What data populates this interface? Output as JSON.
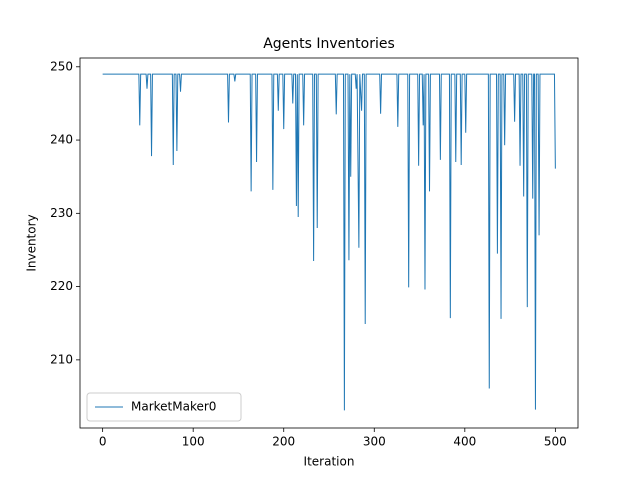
{
  "chart_data": {
    "type": "line",
    "title": "Agents Inventories",
    "xlabel": "Iteration",
    "ylabel": "Inventory",
    "x": [
      0,
      40,
      41,
      42,
      48,
      49,
      50,
      53,
      54,
      55,
      77,
      78,
      79,
      81,
      82,
      83,
      85,
      86,
      87,
      138,
      139,
      140,
      145,
      146,
      147,
      163,
      164,
      165,
      169,
      170,
      171,
      187,
      188,
      189,
      193,
      194,
      195,
      199,
      200,
      201,
      209,
      210,
      211,
      213,
      214,
      215,
      216,
      217,
      221,
      222,
      223,
      232,
      233,
      234,
      236,
      237,
      238,
      257,
      258,
      259,
      266,
      267,
      268,
      271,
      272,
      273,
      274,
      275,
      279,
      280,
      281,
      283,
      284,
      286,
      287,
      289,
      290,
      291,
      306,
      307,
      308,
      325,
      326,
      327,
      337,
      338,
      339,
      348,
      349,
      350,
      353,
      354,
      355,
      356,
      357,
      360,
      361,
      362,
      372,
      373,
      374,
      383,
      384,
      385,
      389,
      390,
      391,
      395,
      396,
      397,
      400,
      401,
      402,
      426,
      427,
      428,
      435,
      436,
      437,
      439,
      440,
      441,
      443,
      444,
      445,
      454,
      455,
      456,
      460,
      461,
      462,
      464,
      465,
      466,
      468,
      469,
      470,
      474,
      475,
      476,
      477,
      478,
      479,
      481,
      482,
      483,
      499,
      500
    ],
    "series": [
      {
        "name": "MarketMaker0",
        "color": "#1f77b4",
        "values": [
          249,
          249,
          242,
          249,
          249,
          247,
          249,
          249,
          237.8,
          249,
          249,
          236.6,
          249,
          249,
          238.5,
          249,
          249,
          246.6,
          249,
          249,
          242.4,
          249,
          249,
          248,
          249,
          249,
          233,
          249,
          249,
          237,
          249,
          249,
          233.2,
          249,
          249,
          244,
          249,
          249,
          241.5,
          249,
          249,
          245,
          249,
          249,
          231,
          249,
          229.5,
          249,
          249,
          242,
          249,
          249,
          223.5,
          249,
          249,
          228,
          249,
          249,
          243.5,
          249,
          249,
          203.1,
          249,
          249,
          223.6,
          249,
          235,
          249,
          249,
          247,
          249,
          225.3,
          249,
          244,
          249,
          249,
          214.9,
          249,
          249,
          243.6,
          249,
          249,
          241.8,
          249,
          249,
          219.9,
          249,
          249,
          236.5,
          249,
          249,
          242,
          249,
          219.6,
          249,
          249,
          233,
          249,
          249,
          237.3,
          249,
          249,
          215.7,
          249,
          249,
          237,
          249,
          249,
          236.6,
          249,
          249,
          241,
          249,
          249,
          206.1,
          249,
          249,
          224.5,
          249,
          249,
          215.6,
          249,
          249,
          239.3,
          249,
          249,
          242.5,
          249,
          249,
          236.5,
          249,
          249,
          232.3,
          249,
          249,
          217.2,
          249,
          249,
          232,
          249,
          249,
          203.2,
          249,
          249,
          227,
          249,
          249,
          236.1
        ]
      }
    ],
    "xlim": [
      -25,
      525
    ],
    "ylim": [
      200.7,
      251.2
    ],
    "xticks": [
      0,
      100,
      200,
      300,
      400,
      500
    ],
    "yticks": [
      210,
      220,
      230,
      240,
      250
    ],
    "legend": "lower left"
  }
}
